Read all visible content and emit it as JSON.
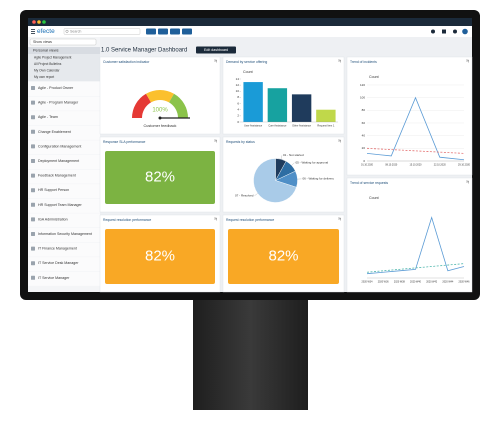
{
  "window": {
    "brand": "efecte",
    "search_placeholder": "Search"
  },
  "sidebar": {
    "view_select": "Show views",
    "personal_views": {
      "title": "Personal views",
      "items": [
        "Agile Project Management",
        "All Project Bulletins",
        "My Own Calendar",
        "My own report"
      ]
    },
    "views": [
      "Agile - Product Owner",
      "Agile - Program Manager",
      "Agile - Team",
      "Change Enablement",
      "Configuration Management",
      "Deployment Management",
      "Feedback Management",
      "HR Support Person",
      "HR Support Team Manager",
      "IGA Administration",
      "Information Security Management",
      "IT Finance Management",
      "IT Service Desk Manager",
      "IT Service Manager"
    ]
  },
  "dashboard": {
    "title": "1.0 Service Manager Dashboard",
    "edit_button": "Edit dashboard",
    "widgets": [
      {
        "title": "Customer satisfaction indicator",
        "chart": {
          "type": "gauge",
          "value": 100,
          "value_label": "100%",
          "label": "Customer feedback",
          "ylim": [
            0,
            100
          ],
          "colors": [
            "#e53935",
            "#fbc02d",
            "#8bc34a"
          ]
        }
      },
      {
        "title": "Demand by service offering",
        "chart": {
          "type": "bar",
          "ylabel": "Count",
          "categories": [
            "User Assistance",
            "Core Assistance",
            "Other Assistance",
            "Request Item 1"
          ],
          "values": [
            13,
            11,
            9,
            4
          ],
          "colors": [
            "#1a9bd7",
            "#17a2a0",
            "#1f3b5c",
            "#c0d84a"
          ],
          "ylim": [
            0,
            14
          ],
          "yticks": [
            0,
            2,
            4,
            6,
            8,
            10,
            12,
            14
          ]
        }
      },
      {
        "title": "Trend of incidents",
        "chart": {
          "type": "line",
          "ylabel": "Count",
          "categories": [
            "01.10.2020",
            "08.10.2020",
            "15.10.2020",
            "22.10.2020",
            "29.10.2020"
          ],
          "series": [
            {
              "color": "#5b9bd5",
              "values": [
                12,
                8,
                100,
                6,
                2
              ]
            },
            {
              "color": "#e57373",
              "dashed": true,
              "values": [
                20,
                18,
                16,
                14,
                12
              ]
            }
          ],
          "ylim": [
            0,
            120
          ],
          "yticks": [
            0,
            20,
            40,
            60,
            80,
            100,
            120
          ]
        }
      },
      {
        "title": "Response SLA performance",
        "chart": {
          "type": "kpi",
          "value": 82,
          "value_label": "82%",
          "color": "#7cb342"
        }
      },
      {
        "title": "Requests by status",
        "chart": {
          "type": "pie",
          "categories": [
            "01 - Not started",
            "05 - Waiting for approval",
            "06 - Waiting for delivery",
            "07 - Resolved"
          ],
          "values": [
            8,
            10,
            12,
            70
          ],
          "colors": [
            "#1f3b5c",
            "#2d6da3",
            "#4f8fc7",
            "#a9cbe8"
          ]
        }
      },
      {
        "title": "Trend of service requests",
        "chart": {
          "type": "line",
          "ylabel": "Count",
          "categories": [
            "2020 W34",
            "2020 W36",
            "2020 W38",
            "2020 W40",
            "2020 W42",
            "2020 W44",
            "2020 W46"
          ],
          "series": [
            {
              "color": "#5b9bd5",
              "values": [
                3,
                4,
                5,
                6,
                42,
                5,
                8
              ]
            },
            {
              "color": "#4db6ac",
              "dashed": true,
              "values": [
                4,
                5,
                6,
                7,
                8,
                9,
                10
              ]
            }
          ],
          "ylim": [
            0,
            50
          ]
        }
      },
      {
        "title": "Request resolution performance",
        "chart": {
          "type": "kpi",
          "value": 82,
          "value_label": "82%",
          "color": "#f9a825"
        }
      },
      {
        "title": "Request resolution performance",
        "chart": {
          "type": "kpi",
          "value": 82,
          "value_label": "82%",
          "color": "#f9a825"
        }
      }
    ]
  }
}
